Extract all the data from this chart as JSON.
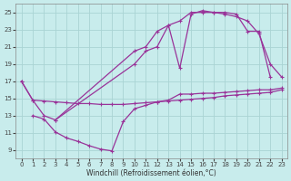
{
  "xlabel": "Windchill (Refroidissement éolien,°C)",
  "bg_color": "#c8ecec",
  "grid_color": "#aad4d4",
  "line_color": "#993399",
  "xlim": [
    -0.5,
    23.5
  ],
  "ylim": [
    8.0,
    26.0
  ],
  "xticks": [
    0,
    1,
    2,
    3,
    4,
    5,
    6,
    7,
    8,
    9,
    10,
    11,
    12,
    13,
    14,
    15,
    16,
    17,
    18,
    19,
    20,
    21,
    22,
    23
  ],
  "yticks": [
    9,
    11,
    13,
    15,
    17,
    19,
    21,
    23,
    25
  ],
  "lines": [
    {
      "x": [
        0,
        1,
        2,
        3,
        4,
        5,
        6,
        7,
        8,
        9,
        10,
        11,
        12,
        13,
        14,
        15,
        16,
        17,
        18,
        19,
        20,
        21,
        22,
        23
      ],
      "y": [
        17.0,
        14.8,
        14.7,
        14.6,
        14.5,
        14.4,
        14.4,
        14.3,
        14.3,
        14.3,
        14.4,
        14.5,
        14.6,
        14.7,
        14.8,
        14.9,
        15.0,
        15.1,
        15.3,
        15.4,
        15.5,
        15.6,
        15.7,
        16.0
      ]
    },
    {
      "x": [
        1,
        2,
        3,
        4,
        5,
        6,
        7,
        8,
        9,
        10,
        11,
        12,
        13,
        14,
        15,
        16,
        17,
        18,
        19,
        20,
        21,
        22,
        23
      ],
      "y": [
        13.0,
        12.6,
        11.1,
        10.4,
        10.0,
        9.5,
        9.1,
        8.9,
        12.3,
        13.8,
        14.2,
        14.6,
        14.8,
        15.5,
        15.5,
        15.6,
        15.6,
        15.7,
        15.8,
        15.9,
        16.0,
        16.0,
        16.2
      ]
    },
    {
      "x": [
        0,
        1,
        2,
        3,
        10,
        11,
        12,
        13,
        14,
        15,
        16,
        17,
        18,
        19,
        20,
        21,
        22,
        23
      ],
      "y": [
        17.0,
        14.8,
        13.0,
        12.5,
        19.0,
        20.5,
        21.0,
        23.5,
        24.0,
        25.0,
        25.0,
        25.0,
        24.8,
        24.5,
        24.0,
        22.5,
        19.0,
        17.5
      ]
    },
    {
      "x": [
        3,
        10,
        11,
        12,
        13,
        14,
        15,
        16,
        17,
        18,
        19,
        20,
        21,
        22
      ],
      "y": [
        12.5,
        20.5,
        21.0,
        22.8,
        23.5,
        18.5,
        24.8,
        25.2,
        25.0,
        25.0,
        24.8,
        22.8,
        22.8,
        17.5
      ]
    }
  ]
}
